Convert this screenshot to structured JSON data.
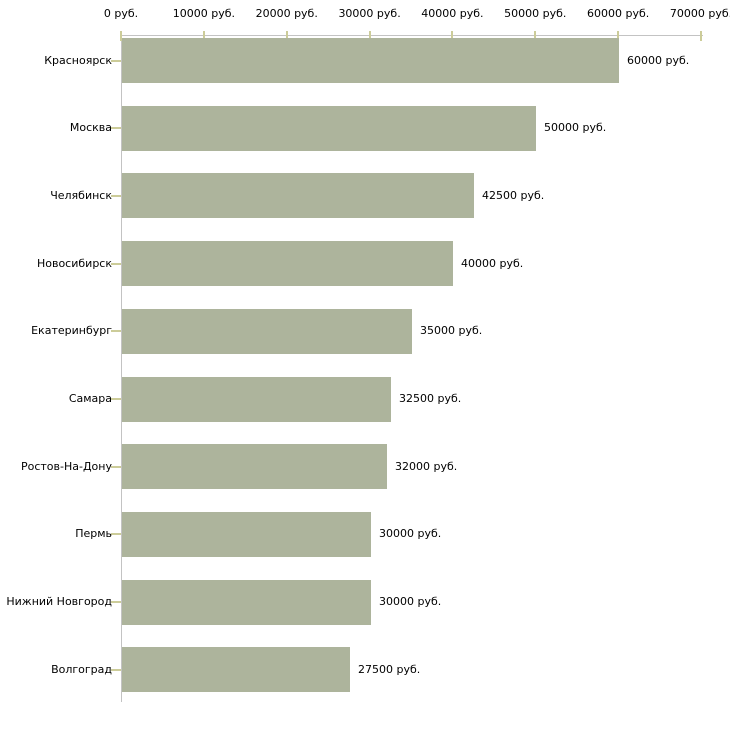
{
  "chart_data": {
    "type": "bar",
    "orientation": "horizontal",
    "title": "",
    "categories": [
      "Красноярск",
      "Москва",
      "Челябинск",
      "Новосибирск",
      "Екатеринбург",
      "Самара",
      "Ростов-На-Дону",
      "Пермь",
      "Нижний Новгород",
      "Волгоград"
    ],
    "values": [
      60000,
      50000,
      42500,
      40000,
      35000,
      32500,
      32000,
      30000,
      30000,
      27500
    ],
    "value_labels": [
      "60000 руб.",
      "50000 руб.",
      "42500 руб.",
      "40000 руб.",
      "35000 руб.",
      "32500 руб.",
      "32000 руб.",
      "30000 руб.",
      "30000 руб.",
      "27500 руб."
    ],
    "xlabel": "",
    "ylabel": "",
    "x_axis": {
      "position": "top",
      "min": 0,
      "max": 70000,
      "ticks": [
        0,
        10000,
        20000,
        30000,
        40000,
        50000,
        60000,
        70000
      ],
      "tick_labels": [
        "0 руб.",
        "10000 руб.",
        "20000 руб.",
        "30000 руб.",
        "40000 руб.",
        "50000 руб.",
        "60000 руб.",
        "70000 руб."
      ]
    },
    "grid": false,
    "legend": false,
    "colors": {
      "bar": "#adb49c",
      "axis_line": "#c3c3c3",
      "tick_mark": "#cccc99",
      "text": "#000000",
      "background": "#ffffff"
    }
  }
}
